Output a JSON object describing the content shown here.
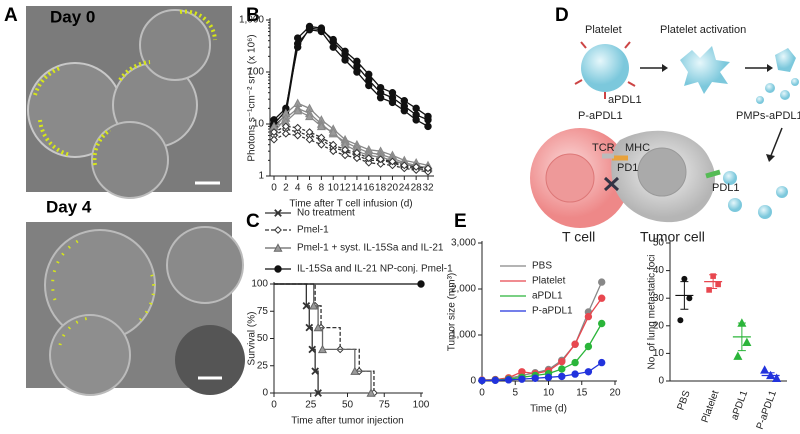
{
  "panel_labels": [
    "A",
    "B",
    "C",
    "D",
    "E"
  ],
  "microscopy": {
    "top": "Day 0",
    "bottom": "Day 4"
  },
  "diagram": {
    "platelet": "Platelet",
    "activation": "Platelet activation",
    "antibody": "aPDL1",
    "conjugate": "P-aPDL1",
    "microparticles": "PMPs-aPDL1",
    "tcr": "TCR",
    "mhc": "MHC",
    "pd1": "PD1",
    "pdl1": "PDL1",
    "t_cell": "T cell",
    "tumor_cell": "Tumor cell"
  },
  "chart_data": [
    {
      "type": "line",
      "log_scale": true,
      "ylabel": "Photons s⁻¹cm⁻² sr⁻¹ (x 10⁶)",
      "xlabel": "Time after T cell infusion (d)",
      "categories": [
        "0",
        "2",
        "4",
        "6",
        "8",
        "10",
        "12",
        "14",
        "16",
        "18",
        "20",
        "24",
        "28",
        "32"
      ],
      "ylim": [
        1,
        1000
      ],
      "yticks": [
        1,
        10,
        100,
        {
          "value": 1000,
          "label": "1,000"
        }
      ],
      "series": [
        {
          "color": "#111111",
          "marker": "circle",
          "fill": "#111111",
          "dash": false,
          "values": [
            10,
            18,
            450,
            750,
            700,
            380,
            220,
            130,
            70,
            40,
            32,
            22,
            15,
            12
          ]
        },
        {
          "color": "#111111",
          "marker": "circle",
          "fill": "#111111",
          "dash": false,
          "values": [
            9,
            15,
            350,
            650,
            600,
            300,
            170,
            100,
            55,
            32,
            26,
            18,
            12,
            9
          ]
        },
        {
          "color": "#111111",
          "marker": "circle",
          "fill": "#111111",
          "dash": false,
          "values": [
            12,
            20,
            300,
            700,
            650,
            420,
            250,
            160,
            90,
            50,
            40,
            28,
            20,
            14
          ]
        },
        {
          "color": "#888888",
          "marker": "triangle",
          "fill": "#9a9a9a",
          "dash": false,
          "values": [
            8,
            16,
            25,
            20,
            12,
            8,
            5,
            4,
            3.2,
            3,
            2.5,
            2,
            1.8,
            1.6
          ]
        },
        {
          "color": "#888888",
          "marker": "triangle",
          "fill": "#9a9a9a",
          "dash": false,
          "values": [
            7,
            13,
            20,
            16,
            10,
            6.5,
            4.5,
            3.5,
            2.8,
            2.6,
            2.2,
            1.8,
            1.6,
            1.4
          ]
        },
        {
          "color": "#888888",
          "marker": "triangle",
          "fill": "#9a9a9a",
          "dash": false,
          "values": [
            9,
            11,
            18,
            14,
            9,
            7,
            4,
            3,
            2.5,
            2.3,
            2,
            1.7,
            1.5,
            1.5
          ]
        },
        {
          "color": "#333333",
          "marker": "diamond",
          "fill": "#ffffff",
          "dash": true,
          "values": [
            6,
            8,
            7,
            6,
            5,
            3.5,
            3,
            2.5,
            2,
            2,
            1.8,
            1.5,
            1.4,
            1.3
          ]
        },
        {
          "color": "#333333",
          "marker": "diamond",
          "fill": "#ffffff",
          "dash": true,
          "values": [
            5,
            6.5,
            6,
            5,
            4,
            3,
            2.5,
            2.2,
            1.8,
            1.7,
            1.6,
            1.4,
            1.3,
            1.2
          ]
        },
        {
          "color": "#333333",
          "marker": "diamond",
          "fill": "#ffffff",
          "dash": true,
          "values": [
            7,
            9,
            8.5,
            7,
            5.5,
            4,
            3.2,
            2.8,
            2.2,
            2.1,
            1.9,
            1.6,
            1.5,
            1.4
          ]
        }
      ]
    },
    {
      "type": "step",
      "ylabel": "Survival (%)",
      "xlabel": "Time after tumor injection",
      "xlim": [
        0,
        100
      ],
      "xticks": [
        0,
        25,
        50,
        75,
        100
      ],
      "ylim": [
        0,
        100
      ],
      "yticks": [
        0,
        25,
        50,
        75,
        100
      ],
      "series": [
        {
          "name": "No treatment",
          "color": "#333333",
          "marker": "x",
          "fill": "#333333",
          "dash": false,
          "x": [
            0,
            22,
            24,
            26,
            28,
            30
          ],
          "values": [
            100,
            80,
            60,
            40,
            20,
            0
          ]
        },
        {
          "name": "Pmel-1",
          "color": "#333333",
          "marker": "diamond",
          "fill": "#ffffff",
          "dash": true,
          "x": [
            0,
            28,
            32,
            45,
            58,
            68
          ],
          "values": [
            100,
            80,
            60,
            40,
            20,
            0
          ]
        },
        {
          "name": "Pmel-1 + syst. IL-15Sa and IL-21",
          "color": "#666666",
          "marker": "triangle",
          "fill": "#9a9a9a",
          "dash": false,
          "x": [
            0,
            27,
            30,
            33,
            55,
            66
          ],
          "values": [
            100,
            80,
            60,
            40,
            20,
            0
          ]
        },
        {
          "name": "IL-15Sa and IL-21 NP-conj. Pmel-1",
          "color": "#111111",
          "marker": "circle",
          "fill": "#111111",
          "dash": false,
          "x": [
            0,
            100
          ],
          "values": [
            100,
            100
          ]
        }
      ]
    },
    {
      "type": "line",
      "ylabel": "Tumor size (mm³)",
      "xlabel": "Time (d)",
      "xlim": [
        0,
        20
      ],
      "xticks": [
        0,
        5,
        10,
        15,
        20
      ],
      "ylim": [
        0,
        3000
      ],
      "yticks": [
        0,
        {
          "value": 1000,
          "label": "1,000"
        },
        {
          "value": 2000,
          "label": "2,000"
        },
        {
          "value": 3000,
          "label": "3,000"
        }
      ],
      "x": [
        0,
        2,
        4,
        6,
        8,
        10,
        12,
        14,
        16,
        18
      ],
      "series": [
        {
          "name": "PBS",
          "color": "#888888",
          "values": [
            20,
            30,
            60,
            120,
            180,
            250,
            450,
            800,
            1500,
            2150
          ]
        },
        {
          "name": "Platelet",
          "color": "#e8474f",
          "values": [
            20,
            30,
            70,
            200,
            160,
            220,
            420,
            800,
            1400,
            1800
          ]
        },
        {
          "name": "aPDL1",
          "color": "#2bb53a",
          "values": [
            10,
            20,
            40,
            80,
            120,
            160,
            260,
            400,
            750,
            1250
          ]
        },
        {
          "name": "P-aPDL1",
          "color": "#2233dd",
          "values": [
            10,
            15,
            25,
            40,
            60,
            80,
            100,
            150,
            200,
            400
          ]
        }
      ]
    },
    {
      "type": "dot",
      "ylabel": "No. of lung metastatic foci",
      "categories": [
        "PBS",
        "Platelet",
        "aPDL1",
        "P-aPDL1"
      ],
      "colors": [
        "#111111",
        "#e8474f",
        "#2bb53a",
        "#2233dd"
      ],
      "points": [
        [
          37,
          30,
          22
        ],
        [
          38,
          35,
          33
        ],
        [
          21,
          14,
          9
        ],
        [
          4,
          2,
          1
        ]
      ],
      "means": [
        31,
        36,
        16,
        2
      ],
      "sem": [
        5,
        2.5,
        5,
        1
      ],
      "ylim": [
        0,
        50
      ],
      "yticks": [
        0,
        10,
        20,
        30,
        40,
        50
      ]
    }
  ]
}
